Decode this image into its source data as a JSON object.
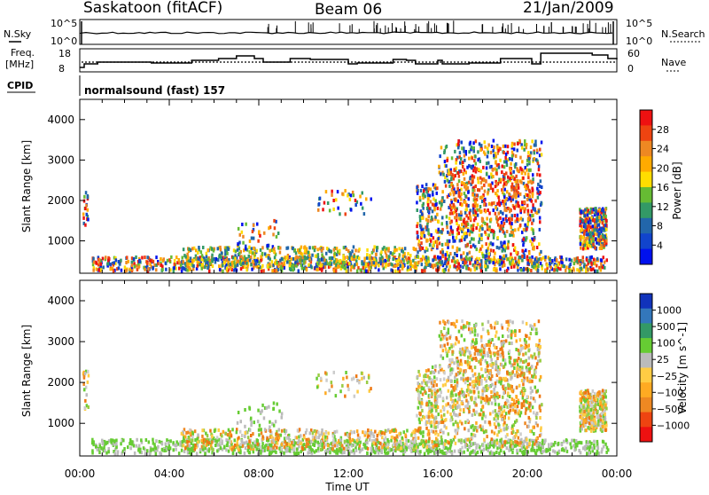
{
  "header": {
    "station": "Saskatoon (fitACF)",
    "beam": "Beam 06",
    "date": "21/Jan/2009"
  },
  "labels": {
    "nsky": "N.Sky",
    "freq": "Freq.",
    "freq_unit": "[MHz]",
    "cpid": "CPID",
    "nsearch": "N.Search",
    "nave": "Nave",
    "cpid_value": "normalsound (fast) 157",
    "pow_tick_top": "10^5",
    "pow_tick_bottom": "10^0",
    "freq_tick_top": "18",
    "freq_tick_bottom": "8",
    "nave_tick_top": "60",
    "nave_tick_bottom": "0"
  },
  "chart_data": [
    {
      "type": "heatmap",
      "name": "power",
      "ylabel": "Slant Range [km]",
      "yticks": [
        "1000",
        "2000",
        "3000",
        "4000"
      ],
      "xticks": [
        "00:00",
        "04:00",
        "08:00",
        "12:00",
        "16:00",
        "20:00",
        "00:00"
      ],
      "ylim": [
        200,
        4500
      ],
      "colorbar_label": "Power [dB]",
      "colorbar_ticks": [
        "28",
        "24",
        "20",
        "16",
        "12",
        "8",
        "4"
      ],
      "colorbar_colors": [
        "#ee1111",
        "#ee4411",
        "#ee8822",
        "#ffaa00",
        "#ffdd00",
        "#66bb33",
        "#339966",
        "#2266aa",
        "#1144cc",
        "#0011ee"
      ]
    },
    {
      "type": "heatmap",
      "name": "velocity",
      "ylabel": "Slant Range [km]",
      "yticks": [
        "1000",
        "2000",
        "3000",
        "4000"
      ],
      "xticks": [
        "00:00",
        "04:00",
        "08:00",
        "12:00",
        "16:00",
        "20:00",
        "00:00"
      ],
      "xlabel": "Time UT",
      "ylim": [
        200,
        4500
      ],
      "colorbar_label": "Velocity [m s^-1]",
      "colorbar_ticks": [
        "1000",
        "500",
        "100",
        "25",
        "−25",
        "−100",
        "−500",
        "−1000"
      ],
      "colorbar_colors": [
        "#1133bb",
        "#3377bb",
        "#339966",
        "#66cc33",
        "#bbbbbb",
        "#ffcc44",
        "#ffaa22",
        "#ee8822",
        "#ee4411",
        "#ee1111"
      ]
    }
  ]
}
